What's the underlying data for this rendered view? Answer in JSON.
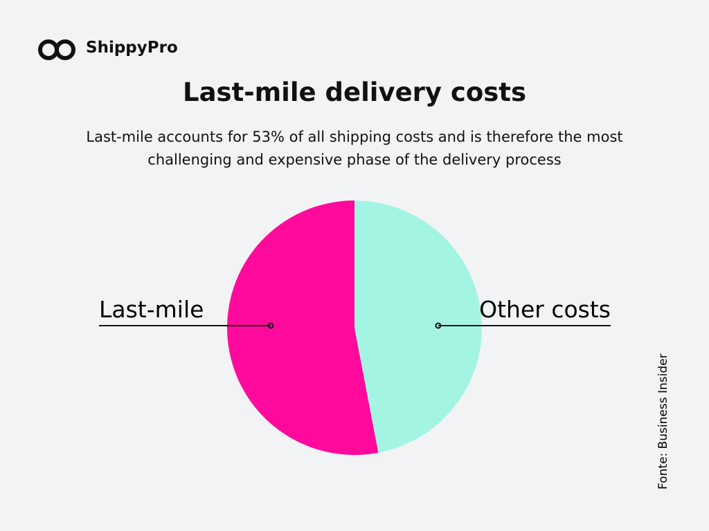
{
  "brand": "ShippyPro",
  "chart_data": {
    "type": "pie",
    "title": "Last-mile delivery costs",
    "subtitle": "Last-mile accounts for 53% of all shipping costs and is therefore the most challenging and expensive phase of the delivery process",
    "categories": [
      "Last-mile",
      "Other costs"
    ],
    "values": [
      53,
      47
    ],
    "colors": [
      "#ff0a9c",
      "#a4f4e4"
    ],
    "source": "Fonte: Business Insider"
  }
}
